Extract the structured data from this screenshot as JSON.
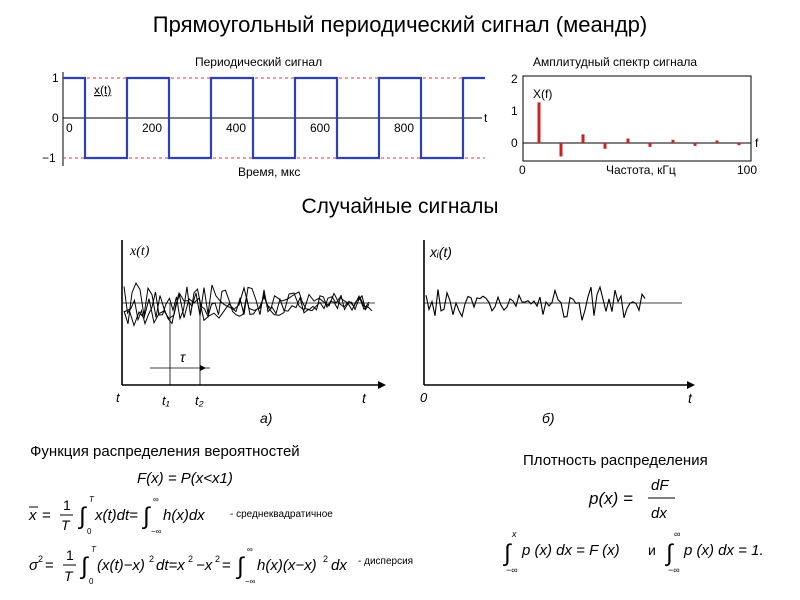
{
  "title": "Прямоугольный периодический сигнал (меандр)",
  "subtitle": "Случайные сигналы",
  "periodic_plot": {
    "title": "Периодический сигнал",
    "xlabel": "Время, мкс",
    "series_label": "x(t)",
    "t_label": "t",
    "yticks": [
      "1",
      "0",
      "−1"
    ],
    "xticks": [
      "0",
      "200",
      "400",
      "600",
      "800"
    ],
    "colors": {
      "signal": "#2f3fb5",
      "reference": "#d04040"
    }
  },
  "spectrum_plot": {
    "title": "Амплитудный спектр сигнала",
    "xlabel": "Частота, кГц",
    "series_label": "X(f)",
    "f_label": "f",
    "yticks": [
      "2",
      "1",
      "0"
    ],
    "xticks": [
      "0",
      "100"
    ],
    "color": "#cc2222"
  },
  "random_a": {
    "ylabel": "x(t)",
    "tau": "τ",
    "t1": "t₁",
    "t2": "t₂",
    "origin": "t",
    "axis_end": "t",
    "caption": "а)"
  },
  "random_b": {
    "ylabel": "xᵢ(t)",
    "origin": "0",
    "axis_end": "t",
    "caption": "б)"
  },
  "distribution": {
    "heading": "Функция распределения вероятностей",
    "formula": "F(x) = P(x<x1)",
    "mean_note": "- среднеквадратичное",
    "var_note": "- дисперсия"
  },
  "density": {
    "heading": "Плотность распределения",
    "and": "и"
  }
}
